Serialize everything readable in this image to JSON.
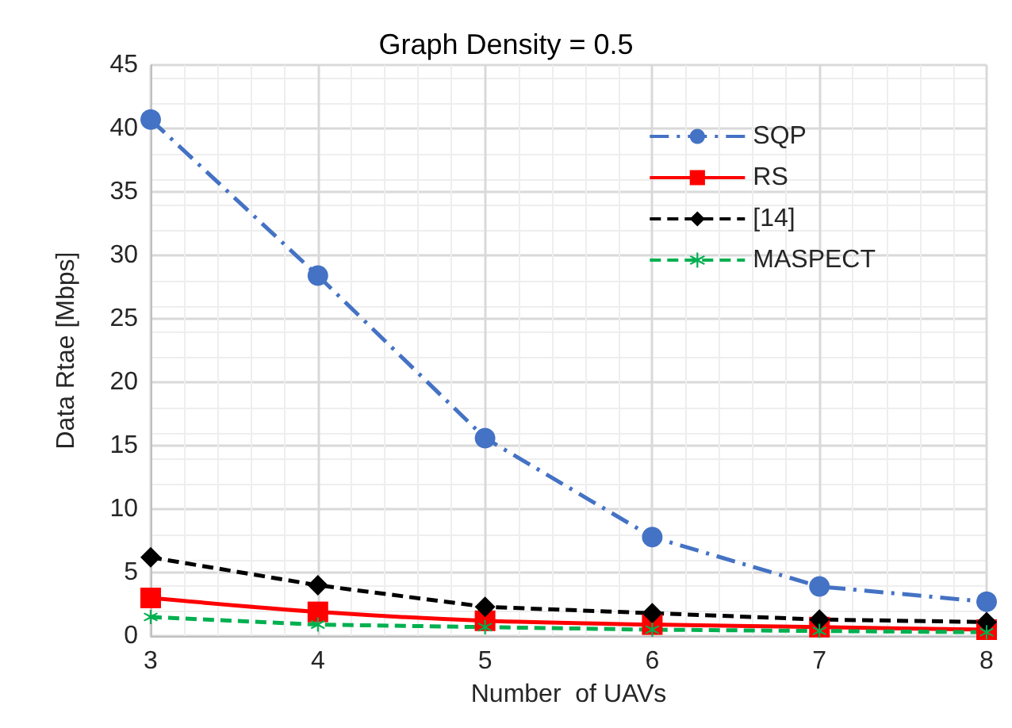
{
  "chart_data": {
    "type": "line",
    "title": "Graph Density = 0.5",
    "xlabel": "Number  of UAVs",
    "ylabel": "Data Rtae [Mbps]",
    "x": [
      3,
      4,
      5,
      6,
      7,
      8
    ],
    "xlim": [
      3,
      8
    ],
    "xticks": [
      3,
      4,
      5,
      6,
      7,
      8
    ],
    "ylim": [
      0,
      45
    ],
    "yticks": [
      0,
      5,
      10,
      15,
      20,
      25,
      30,
      35,
      40,
      45
    ],
    "grid": true,
    "legend": "top right",
    "series": [
      {
        "name": "SQP",
        "color": "#4472c4",
        "marker": "circle",
        "line_style": "dashdot",
        "values": [
          40.7,
          28.4,
          15.6,
          7.8,
          3.9,
          2.7
        ]
      },
      {
        "name": "RS",
        "color": "#ff0000",
        "marker": "square",
        "line_style": "solid",
        "values": [
          3.0,
          1.9,
          1.2,
          0.9,
          0.7,
          0.5
        ]
      },
      {
        "name": "[14]",
        "color": "#000000",
        "marker": "diamond",
        "line_style": "dashed",
        "values": [
          6.2,
          4.0,
          2.3,
          1.8,
          1.3,
          1.1
        ]
      },
      {
        "name": "MASPECT",
        "color": "#00b050",
        "marker": "cross",
        "line_style": "dashed",
        "values": [
          1.5,
          0.9,
          0.7,
          0.5,
          0.4,
          0.3
        ]
      }
    ]
  }
}
